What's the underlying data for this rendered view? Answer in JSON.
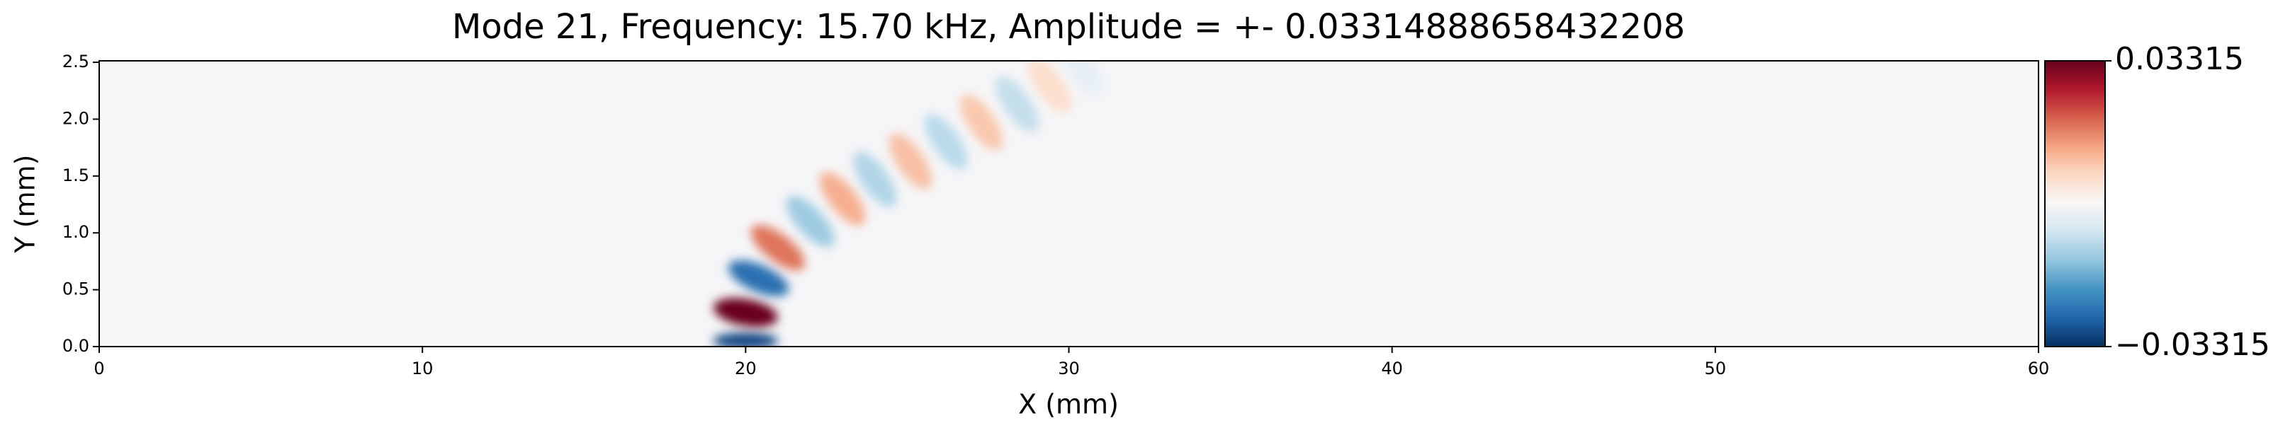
{
  "chart_data": {
    "type": "heatmap",
    "title": "Mode 21, Frequency: 15.70 kHz, Amplitude = +- 0.03314888658432208",
    "xlabel": "X (mm)",
    "ylabel": "Y (mm)",
    "colormap": "RdBu_r",
    "x": [
      20.0,
      20.0,
      20.4,
      21.0,
      22.0,
      23.0,
      24.0,
      25.1,
      26.2,
      27.3,
      28.4,
      29.4,
      30.4
    ],
    "y": [
      0.05,
      0.3,
      0.6,
      0.87,
      1.1,
      1.3,
      1.47,
      1.63,
      1.8,
      1.97,
      2.13,
      2.3,
      2.45
    ],
    "values": [
      -0.03,
      0.033,
      -0.025,
      0.018,
      -0.012,
      0.012,
      -0.01,
      0.01,
      -0.009,
      0.009,
      -0.008,
      0.006,
      -0.003
    ],
    "xlim": [
      0,
      60
    ],
    "xticks": [
      0,
      10,
      20,
      30,
      40,
      50,
      60
    ],
    "ylim": [
      0,
      2.513
    ],
    "yticks": [
      {
        "value": 0,
        "label": "0.0"
      },
      0.5,
      {
        "value": 1,
        "label": "1.0"
      },
      1.5,
      {
        "value": 2,
        "label": "2.0"
      },
      2.5
    ],
    "clim": [
      -0.03314888658432208,
      0.03314888658432208
    ],
    "cticks": [
      {
        "value": -0.03314888658432208,
        "label": "−0.03315"
      },
      {
        "value": 0.03314888658432208,
        "label": "0.03315"
      }
    ]
  }
}
